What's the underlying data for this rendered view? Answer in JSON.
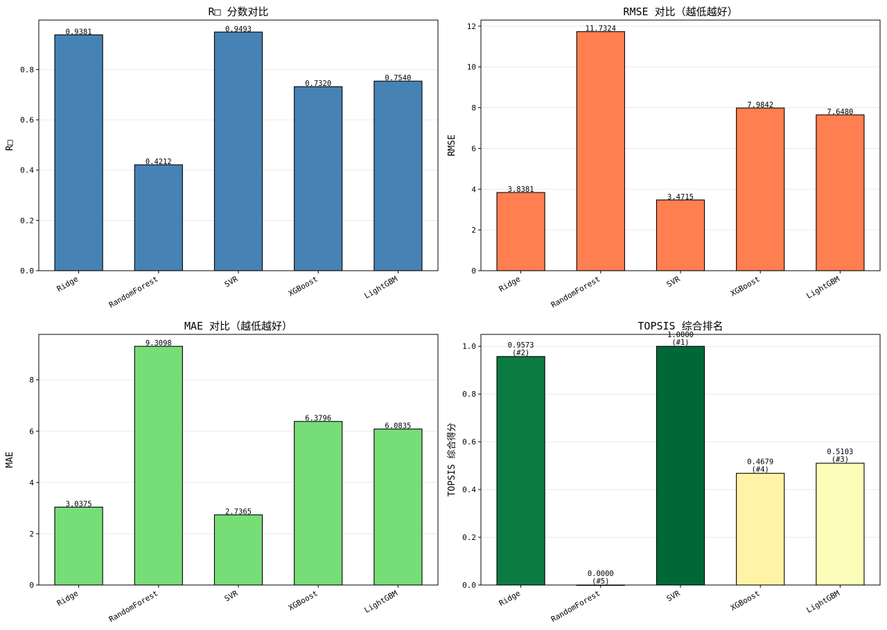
{
  "chart_data": [
    {
      "type": "bar",
      "title": "R□ 分数对比",
      "xlabel": "",
      "ylabel": "R□",
      "categories": [
        "Ridge",
        "RandomForest",
        "SVR",
        "XGBoost",
        "LightGBM"
      ],
      "values": [
        0.9381,
        0.4212,
        0.9493,
        0.732,
        0.754
      ],
      "data_labels": [
        "0.9381",
        "0.4212",
        "0.9493",
        "0.7320",
        "0.7540"
      ],
      "colors": [
        "#4682b4",
        "#4682b4",
        "#4682b4",
        "#4682b4",
        "#4682b4"
      ],
      "ylim": [
        0,
        0.9968
      ],
      "yticks": [
        0.0,
        0.2,
        0.4,
        0.6,
        0.8
      ],
      "ytick_labels": [
        "0.0",
        "0.2",
        "0.4",
        "0.6",
        "0.8"
      ],
      "grid": true
    },
    {
      "type": "bar",
      "title": "RMSE 对比（越低越好）",
      "xlabel": "",
      "ylabel": "RMSE",
      "categories": [
        "Ridge",
        "RandomForest",
        "SVR",
        "XGBoost",
        "LightGBM"
      ],
      "values": [
        3.8381,
        11.7324,
        3.4715,
        7.9842,
        7.648
      ],
      "data_labels": [
        "3.8381",
        "11.7324",
        "3.4715",
        "7.9842",
        "7.6480"
      ],
      "colors": [
        "#ff7f50",
        "#ff7f50",
        "#ff7f50",
        "#ff7f50",
        "#ff7f50"
      ],
      "ylim": [
        0,
        12.3
      ],
      "yticks": [
        0,
        2,
        4,
        6,
        8,
        10,
        12
      ],
      "ytick_labels": [
        "0",
        "2",
        "4",
        "6",
        "8",
        "10",
        "12"
      ],
      "grid": true
    },
    {
      "type": "bar",
      "title": "MAE 对比（越低越好）",
      "xlabel": "",
      "ylabel": "MAE",
      "categories": [
        "Ridge",
        "RandomForest",
        "SVR",
        "XGBoost",
        "LightGBM"
      ],
      "values": [
        3.0375,
        9.3098,
        2.7365,
        6.3796,
        6.0835
      ],
      "data_labels": [
        "3.0375",
        "9.3098",
        "2.7365",
        "6.3796",
        "6.0835"
      ],
      "colors": [
        "#77dd77",
        "#77dd77",
        "#77dd77",
        "#77dd77",
        "#77dd77"
      ],
      "ylim": [
        0,
        9.775
      ],
      "yticks": [
        0,
        2,
        4,
        6,
        8
      ],
      "ytick_labels": [
        "0",
        "2",
        "4",
        "6",
        "8"
      ],
      "grid": true
    },
    {
      "type": "bar",
      "title": "TOPSIS 综合排名",
      "xlabel": "",
      "ylabel": "TOPSIS 综合得分",
      "categories": [
        "Ridge",
        "RandomForest",
        "SVR",
        "XGBoost",
        "LightGBM"
      ],
      "values": [
        0.9573,
        0.0,
        1.0,
        0.4679,
        0.5103
      ],
      "data_labels": [
        "0.9573",
        "0.0000",
        "1.0000",
        "0.4679",
        "0.5103"
      ],
      "rank_labels": [
        "(#2)",
        "(#5)",
        "(#1)",
        "(#4)",
        "(#3)"
      ],
      "colors": [
        "#0c7b41",
        "#0c7b41",
        "#006837",
        "#fff3a6",
        "#fbfdb8"
      ],
      "ylim": [
        0,
        1.05
      ],
      "yticks": [
        0.0,
        0.2,
        0.4,
        0.6,
        0.8,
        1.0
      ],
      "ytick_labels": [
        "0.0",
        "0.2",
        "0.4",
        "0.6",
        "0.8",
        "1.0"
      ],
      "grid": true
    }
  ]
}
